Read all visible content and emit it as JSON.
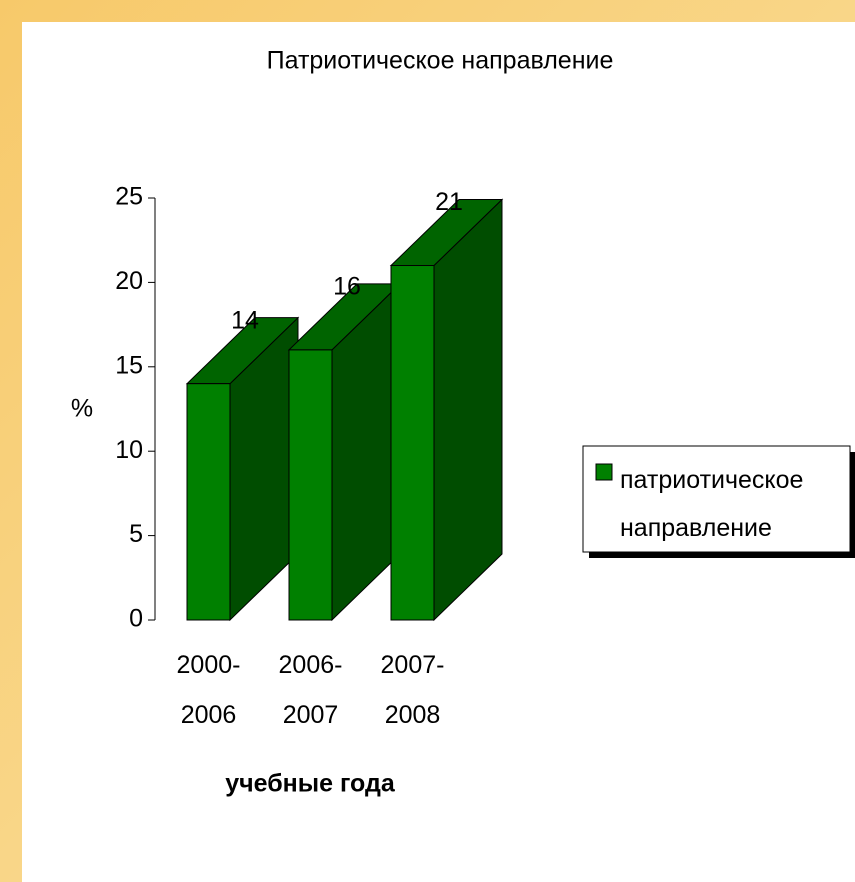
{
  "chart_data": {
    "type": "bar",
    "title": "Патриотическое направление",
    "categories": [
      "2000-2006",
      "2006-2007",
      "2007-2008"
    ],
    "series": [
      {
        "name": "патриотическое направление",
        "color": "#008000",
        "values": [
          14,
          16,
          21
        ]
      }
    ],
    "ylim": [
      0,
      25
    ],
    "yticks": [
      0,
      5,
      10,
      15,
      20,
      25
    ],
    "y_axis_label": "%",
    "x_axis_label": "учебные года",
    "legend": "right"
  }
}
